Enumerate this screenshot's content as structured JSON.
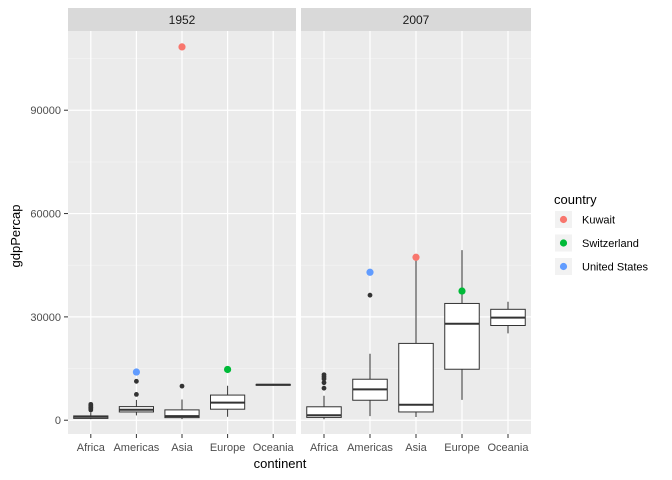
{
  "chart_data": {
    "type": "boxplot",
    "xlabel": "continent",
    "ylabel": "gdpPercap",
    "categories": [
      "Africa",
      "Americas",
      "Asia",
      "Europe",
      "Oceania"
    ],
    "ylim": [
      -4000,
      113000
    ],
    "yticks": [
      0,
      30000,
      60000,
      90000
    ],
    "ytick_labels": [
      "0",
      "30000",
      "60000",
      "90000"
    ],
    "grid": true,
    "legend": {
      "title": "country",
      "position": "right",
      "entries": [
        {
          "label": "Kuwait",
          "color": "#F8766D"
        },
        {
          "label": "Switzerland",
          "color": "#00BA38"
        },
        {
          "label": "United States",
          "color": "#619CFF"
        }
      ]
    },
    "panels": [
      {
        "strip": "1952",
        "boxes": [
          {
            "category": "Africa",
            "whisker_low": 300,
            "q1": 530,
            "median": 990,
            "q3": 1250,
            "whisker_high": 2300,
            "outliers": [
              3000,
              3500,
              3800,
              4200,
              4600
            ]
          },
          {
            "category": "Americas",
            "whisker_low": 1400,
            "q1": 2400,
            "median": 3050,
            "q3": 3950,
            "whisker_high": 5900,
            "outliers": [
              7500,
              11300
            ]
          },
          {
            "category": "Asia",
            "whisker_low": 330,
            "q1": 750,
            "median": 1200,
            "q3": 3000,
            "whisker_high": 6000,
            "outliers": [
              9900
            ]
          },
          {
            "category": "Europe",
            "whisker_low": 1000,
            "q1": 3200,
            "median": 5100,
            "q3": 7300,
            "whisker_high": 10000,
            "outliers": []
          },
          {
            "category": "Oceania",
            "whisker_low": 10040,
            "q1": 10150,
            "median": 10300,
            "q3": 10400,
            "whisker_high": 10560,
            "outliers": []
          }
        ],
        "highlights": [
          {
            "country": "Kuwait",
            "category": "Asia",
            "value": 108382
          },
          {
            "country": "Switzerland",
            "category": "Europe",
            "value": 14734
          },
          {
            "country": "United States",
            "category": "Americas",
            "value": 13990
          }
        ]
      },
      {
        "strip": "2007",
        "boxes": [
          {
            "category": "Africa",
            "whisker_low": 280,
            "q1": 820,
            "median": 1450,
            "q3": 3900,
            "whisker_high": 7100,
            "outliers": [
              9300,
              10900,
              12000,
              12600,
              13200
            ]
          },
          {
            "category": "Americas",
            "whisker_low": 1200,
            "q1": 5800,
            "median": 8950,
            "q3": 11900,
            "whisker_high": 19300,
            "outliers": [
              36300
            ]
          },
          {
            "category": "Asia",
            "whisker_low": 950,
            "q1": 2400,
            "median": 4500,
            "q3": 22300,
            "whisker_high": 47000,
            "outliers": []
          },
          {
            "category": "Europe",
            "whisker_low": 5900,
            "q1": 14800,
            "median": 28000,
            "q3": 33900,
            "whisker_high": 49400,
            "outliers": []
          },
          {
            "category": "Oceania",
            "whisker_low": 25200,
            "q1": 27500,
            "median": 29800,
            "q3": 32200,
            "whisker_high": 34400,
            "outliers": []
          }
        ],
        "highlights": [
          {
            "country": "Kuwait",
            "category": "Asia",
            "value": 47307
          },
          {
            "country": "Switzerland",
            "category": "Europe",
            "value": 37506
          },
          {
            "country": "United States",
            "category": "Americas",
            "value": 42952
          }
        ]
      }
    ]
  }
}
